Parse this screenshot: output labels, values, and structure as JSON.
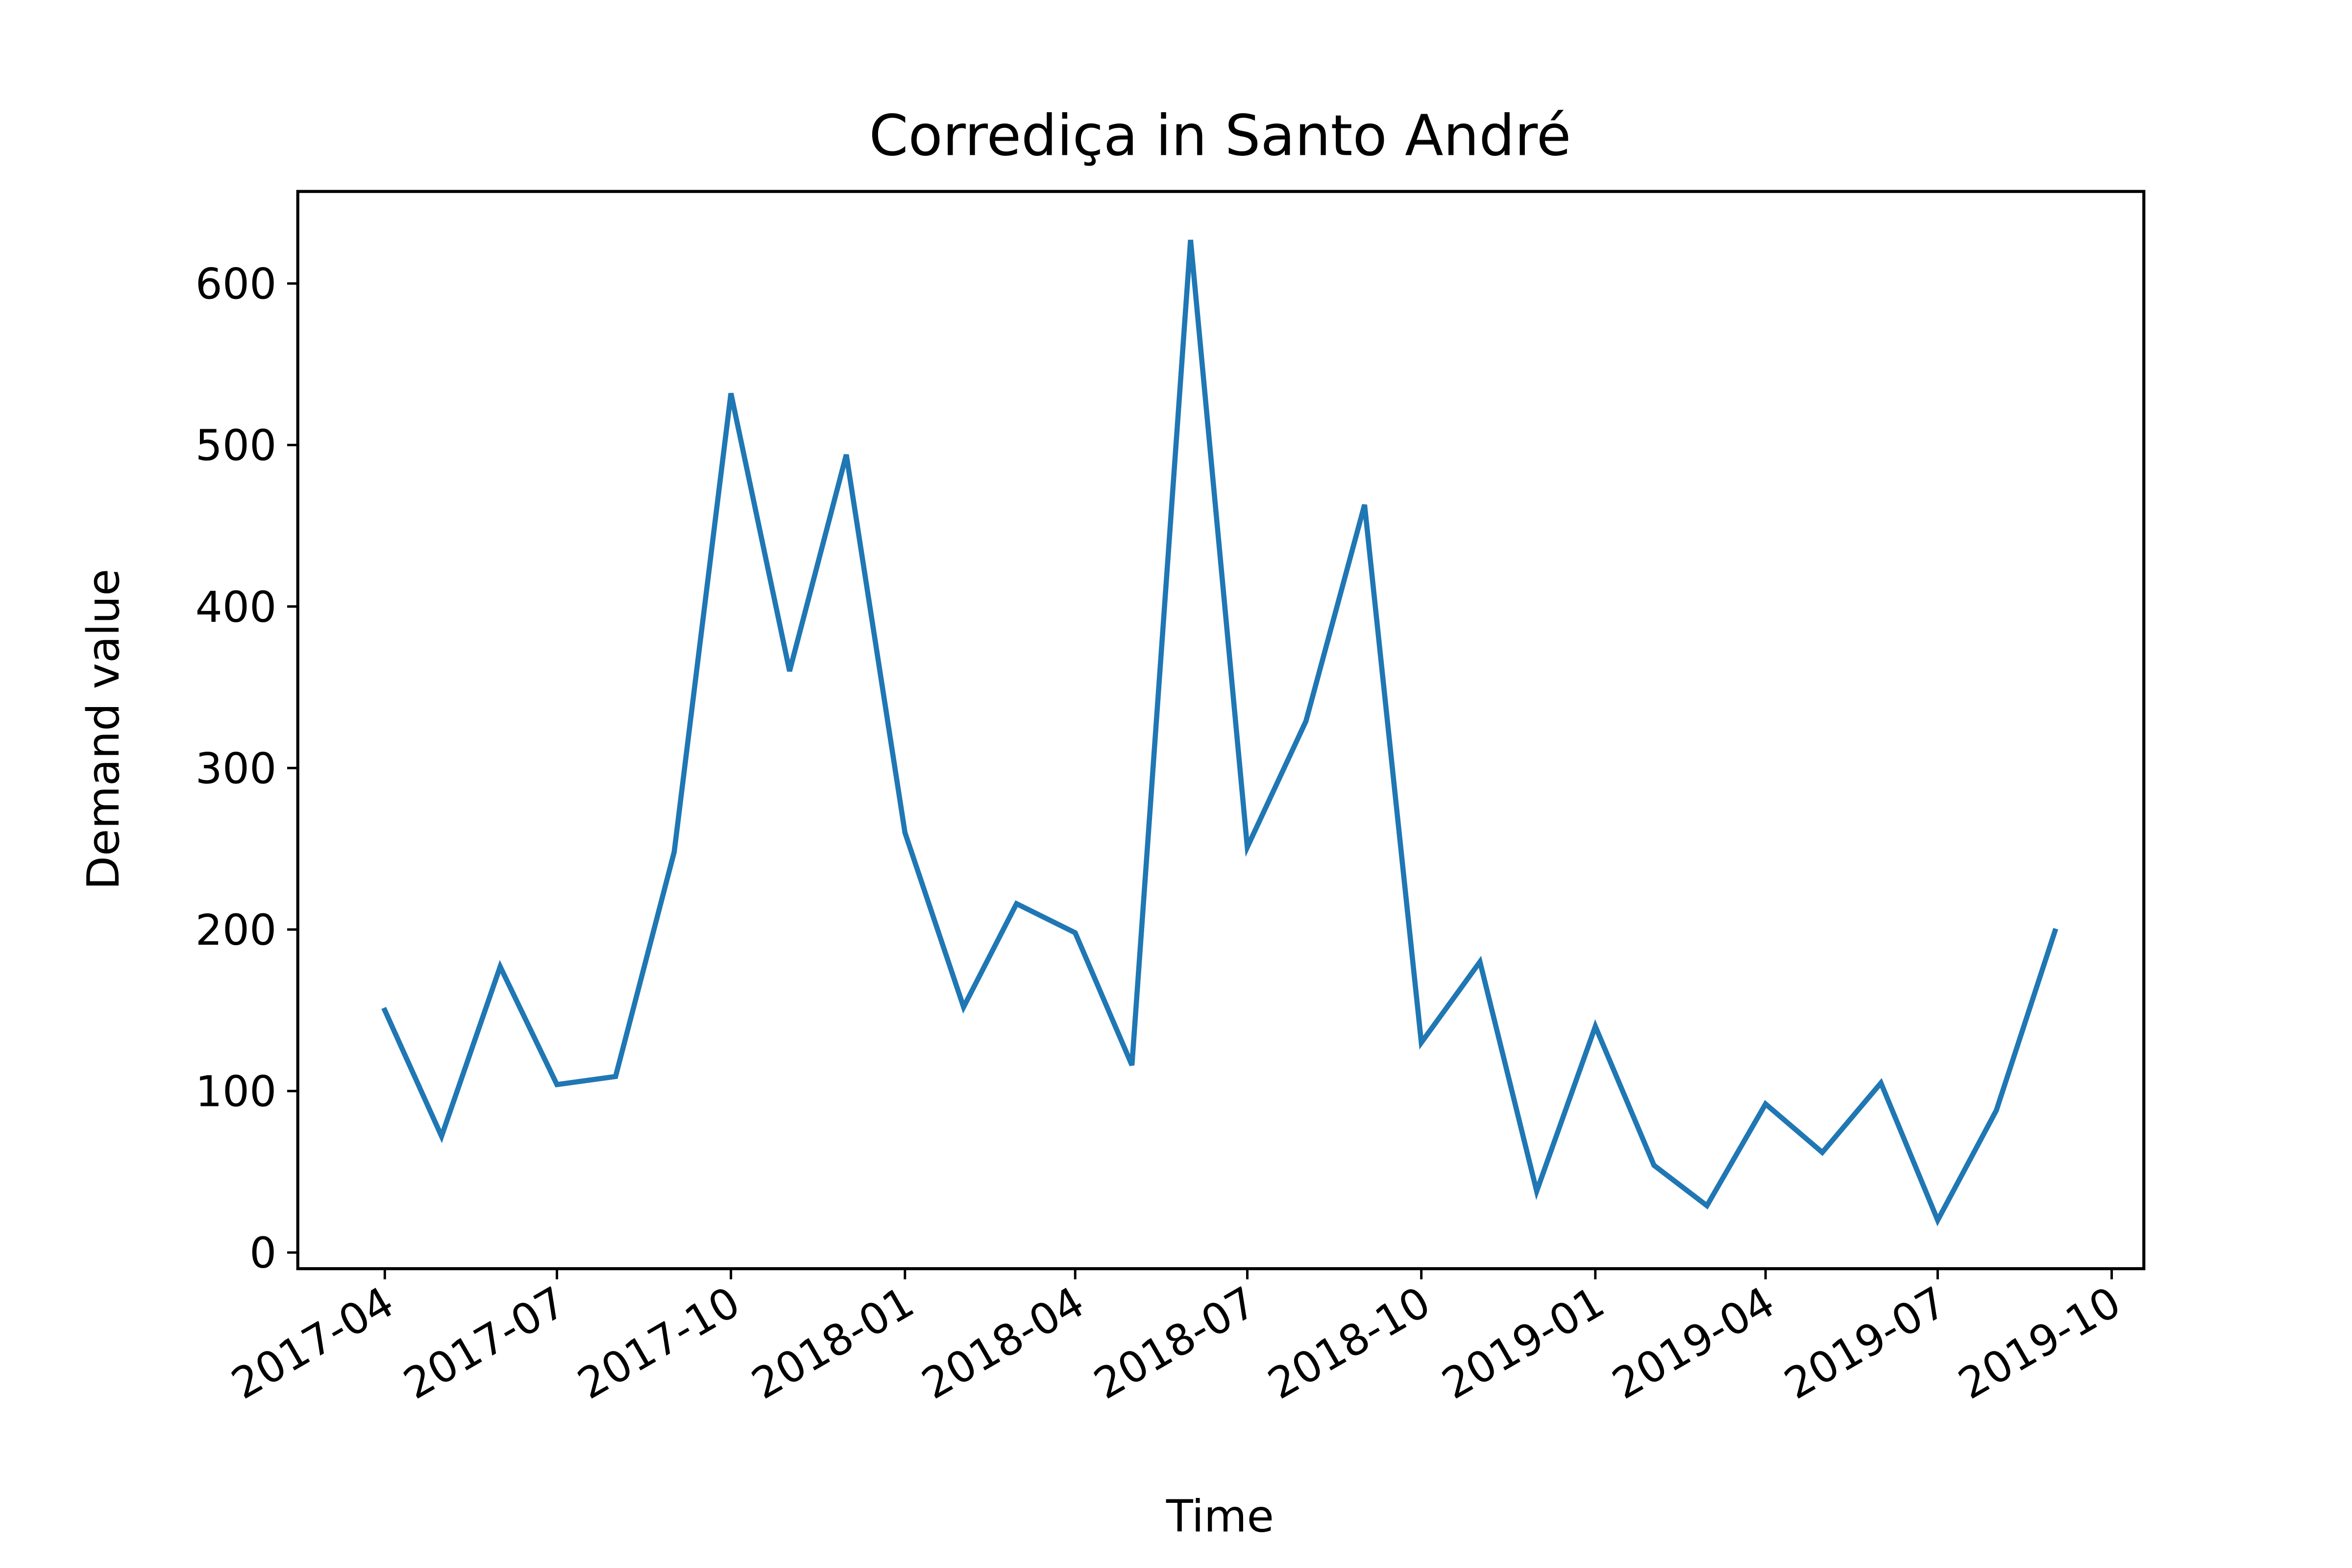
{
  "chart_data": {
    "type": "line",
    "title": "Corrediça in Santo André",
    "xlabel": "Time",
    "ylabel": "Demand value",
    "grid": false,
    "legend": "none",
    "x_ticks": [
      "2017-04",
      "2017-07",
      "2017-10",
      "2018-01",
      "2018-04",
      "2018-07",
      "2018-10",
      "2019-01",
      "2019-04",
      "2019-07",
      "2019-10"
    ],
    "y_ticks": [
      0,
      100,
      200,
      300,
      400,
      500,
      600
    ],
    "ylim": [
      -10,
      657
    ],
    "xlim": [
      "2017-02-14",
      "2019-10-18"
    ],
    "line_color": "#1f77b4",
    "series": [
      {
        "x": [
          "2017-04",
          "2017-05",
          "2017-06",
          "2017-07",
          "2017-08",
          "2017-09",
          "2017-10",
          "2017-11",
          "2017-12",
          "2018-01",
          "2018-02",
          "2018-03",
          "2018-04",
          "2018-05",
          "2018-06",
          "2018-07",
          "2018-08",
          "2018-09",
          "2018-10",
          "2018-11",
          "2018-12",
          "2019-01",
          "2019-02",
          "2019-03",
          "2019-04",
          "2019-05",
          "2019-06",
          "2019-07",
          "2019-08",
          "2019-09"
        ],
        "values": [
          150,
          72,
          177,
          104,
          109,
          248,
          532,
          360,
          494,
          260,
          152,
          216,
          198,
          116,
          627,
          251,
          329,
          463,
          130,
          180,
          38,
          140,
          54,
          29,
          92,
          62,
          105,
          20,
          88,
          199
        ]
      }
    ]
  }
}
